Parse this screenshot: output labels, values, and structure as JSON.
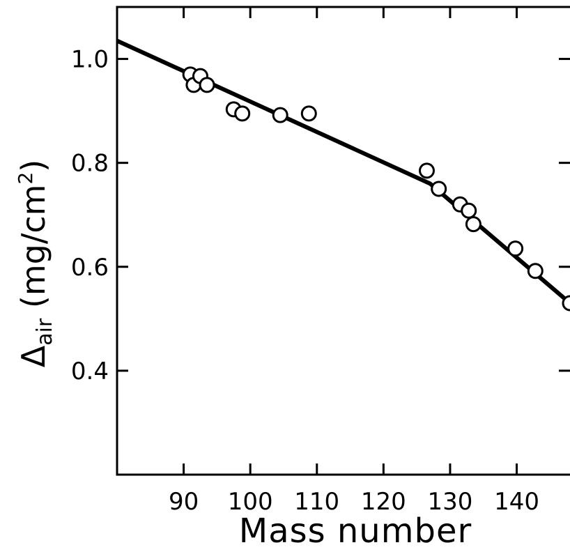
{
  "chart_data": {
    "type": "scatter",
    "xlabel": "Mass number",
    "ylabel": {
      "symbol": "Δ",
      "subscript": "air",
      "unit_open": " (mg/cm",
      "unit_sup": "2",
      "unit_close": ")"
    },
    "xlim": [
      80,
      148
    ],
    "ylim": [
      0.2,
      1.1
    ],
    "x_ticks": [
      90,
      100,
      110,
      120,
      130,
      140
    ],
    "x_tick_labels": [
      "90",
      "100",
      "110",
      "120",
      "130",
      "140"
    ],
    "y_ticks": [
      0.4,
      0.6,
      0.8,
      1.0
    ],
    "y_tick_labels": [
      "0.4",
      "0.6",
      "0.8",
      "1.0"
    ],
    "grid": false,
    "series": [
      {
        "type": "scatter",
        "marker": "open-circle",
        "x": [
          91,
          91.5,
          92.5,
          93.5,
          97.5,
          98.8,
          104.5,
          108.8,
          126.5,
          128.3,
          131.5,
          132.8,
          133.5,
          139.8,
          142.8,
          148
        ],
        "y": [
          0.97,
          0.95,
          0.967,
          0.95,
          0.903,
          0.895,
          0.892,
          0.895,
          0.785,
          0.75,
          0.72,
          0.708,
          0.682,
          0.635,
          0.592,
          0.53
        ]
      },
      {
        "type": "line",
        "x": [
          80,
          127,
          148
        ],
        "y": [
          1.035,
          0.76,
          0.53
        ]
      }
    ]
  }
}
